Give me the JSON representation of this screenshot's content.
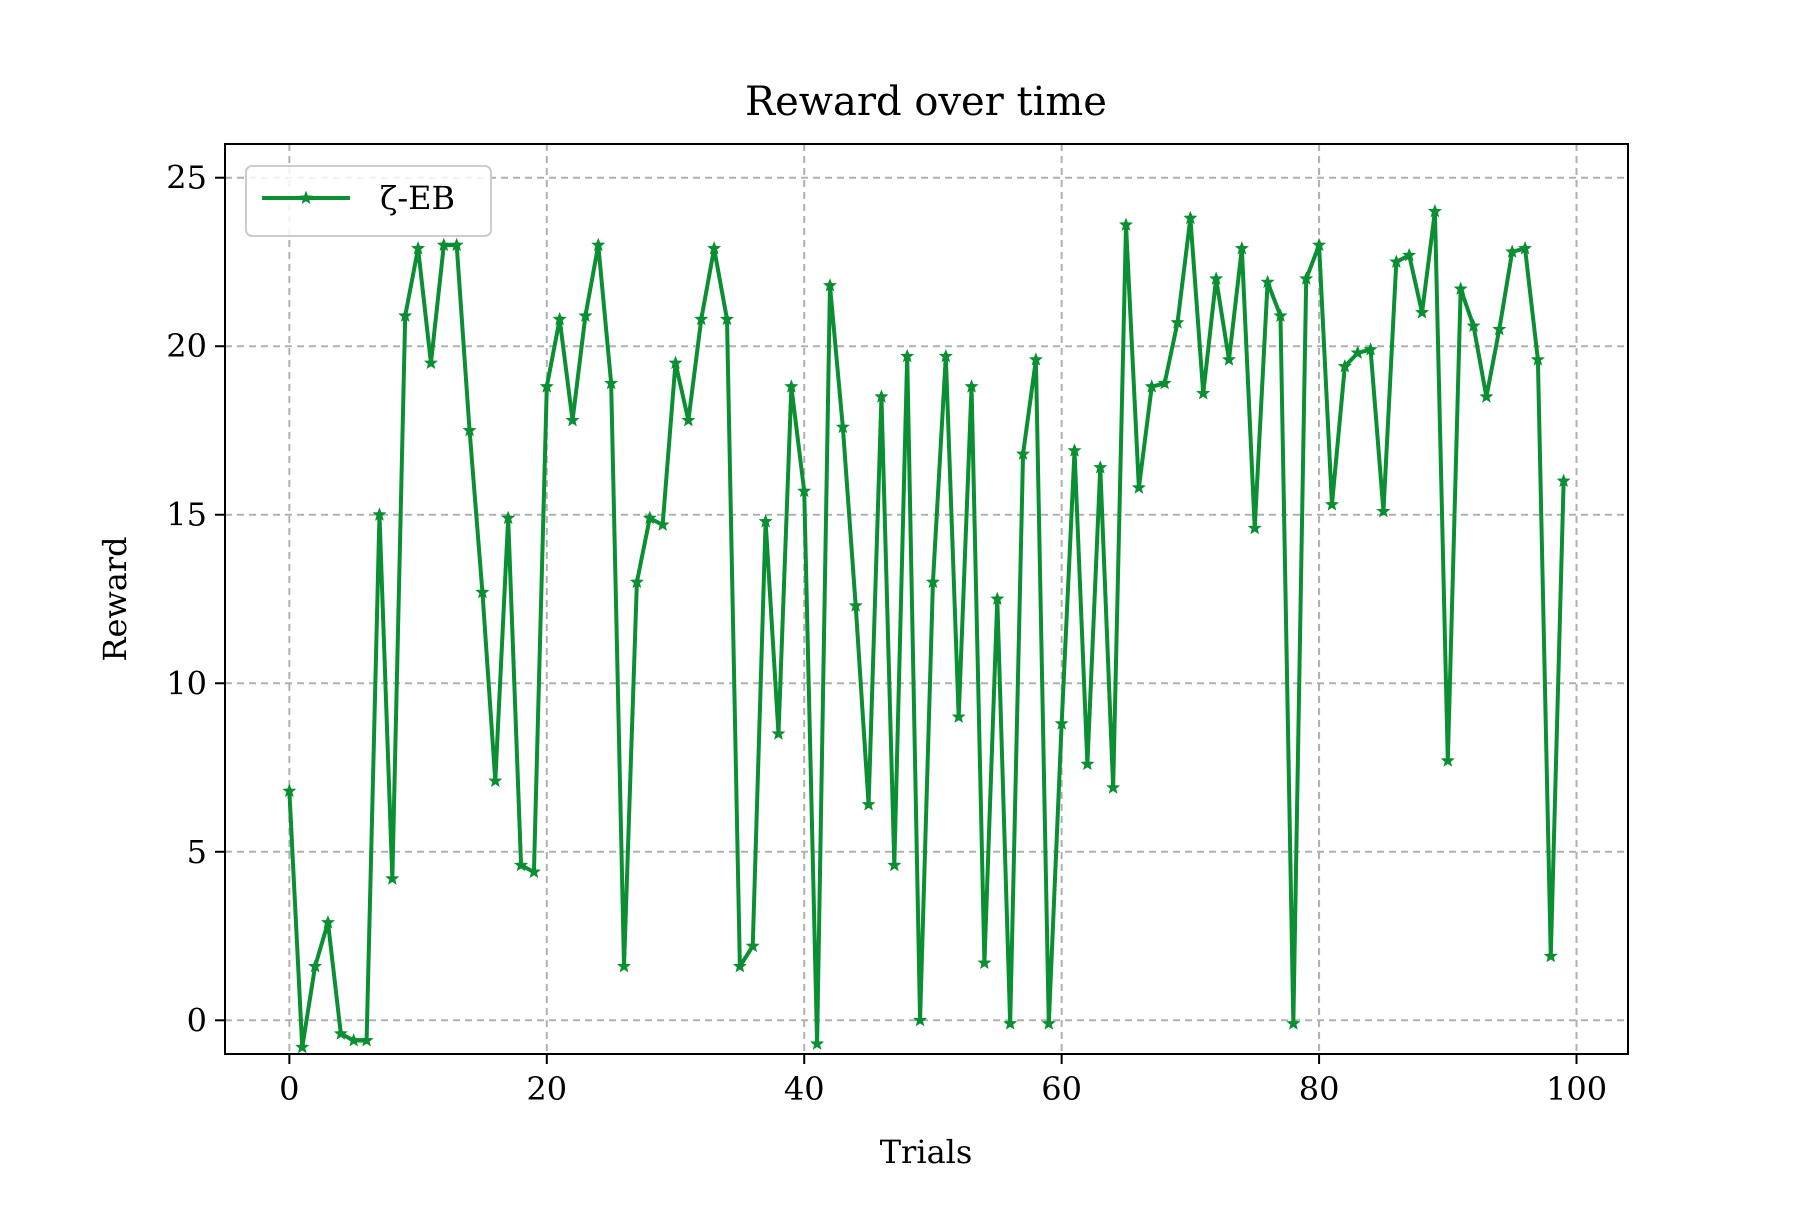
{
  "chart_data": {
    "type": "line",
    "title": "Reward over time",
    "xlabel": "Trials",
    "ylabel": "Reward",
    "xlim": [
      -5,
      104
    ],
    "ylim": [
      -1,
      26
    ],
    "xticks": [
      0,
      20,
      40,
      60,
      80,
      100
    ],
    "yticks": [
      0,
      5,
      10,
      15,
      20,
      25
    ],
    "grid": true,
    "legend_position": "upper-left",
    "series": [
      {
        "name": "ζ-EB",
        "color": "#0a8f32",
        "marker": "star",
        "x": [
          0,
          1,
          2,
          3,
          4,
          5,
          6,
          7,
          8,
          9,
          10,
          11,
          12,
          13,
          14,
          15,
          16,
          17,
          18,
          19,
          20,
          21,
          22,
          23,
          24,
          25,
          26,
          27,
          28,
          29,
          30,
          31,
          32,
          33,
          34,
          35,
          36,
          37,
          38,
          39,
          40,
          41,
          42,
          43,
          44,
          45,
          46,
          47,
          48,
          49,
          50,
          51,
          52,
          53,
          54,
          55,
          56,
          57,
          58,
          59,
          60,
          61,
          62,
          63,
          64,
          65,
          66,
          67,
          68,
          69,
          70,
          71,
          72,
          73,
          74,
          75,
          76,
          77,
          78,
          79,
          80,
          81,
          82,
          83,
          84,
          85,
          86,
          87,
          88,
          89,
          90,
          91,
          92,
          93,
          94,
          95,
          96,
          97,
          98,
          99
        ],
        "y": [
          6.8,
          -0.8,
          1.6,
          2.9,
          -0.4,
          -0.6,
          -0.6,
          15.0,
          4.2,
          20.9,
          22.9,
          19.5,
          23.0,
          23.0,
          17.5,
          12.7,
          7.1,
          14.9,
          4.6,
          4.4,
          18.8,
          20.8,
          17.8,
          20.9,
          23.0,
          18.9,
          1.6,
          13.0,
          14.9,
          14.7,
          19.5,
          17.8,
          20.8,
          22.9,
          20.8,
          1.6,
          2.2,
          14.8,
          8.5,
          18.8,
          15.7,
          -0.7,
          21.8,
          17.6,
          12.3,
          6.4,
          18.5,
          4.6,
          19.7,
          0.0,
          13.0,
          19.7,
          9.0,
          18.8,
          1.7,
          12.5,
          -0.1,
          16.8,
          19.6,
          -0.1,
          8.8,
          16.9,
          7.6,
          16.4,
          6.9,
          23.6,
          15.8,
          18.8,
          18.9,
          20.7,
          23.8,
          18.6,
          22.0,
          19.6,
          22.9,
          14.6,
          21.9,
          20.9,
          -0.1,
          22.0,
          23.0,
          15.3,
          19.4,
          19.8,
          19.9,
          15.1,
          22.5,
          22.7,
          21.0,
          24.0,
          7.7,
          21.7,
          20.6,
          18.5,
          20.5,
          22.8,
          22.9,
          19.6,
          1.9,
          16.0
        ]
      }
    ]
  }
}
